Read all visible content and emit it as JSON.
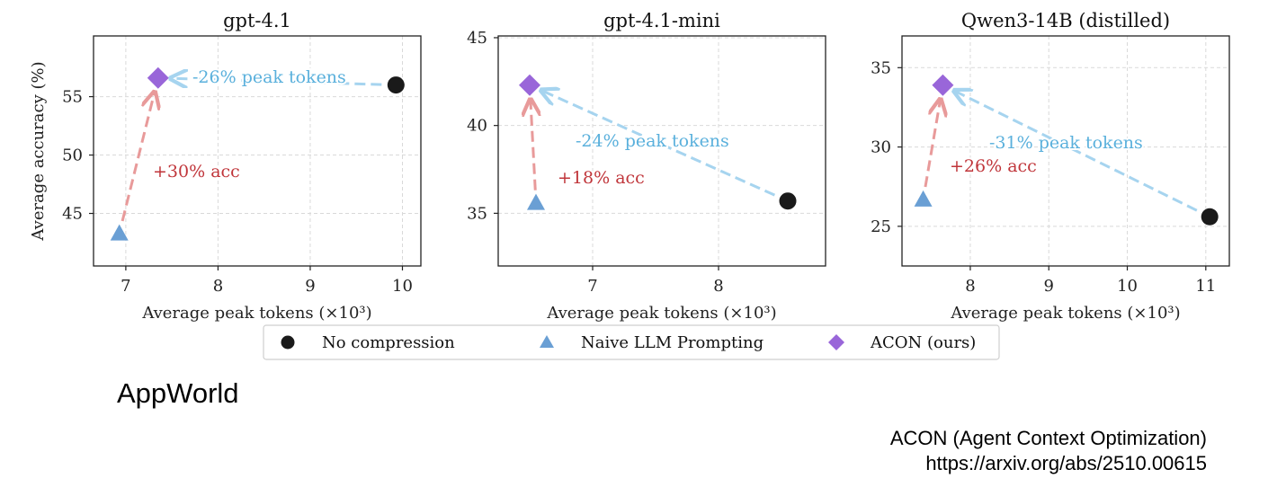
{
  "legend": [
    {
      "label": "No compression",
      "marker": "circle",
      "color": "#1a1a1a"
    },
    {
      "label": "Naive LLM Prompting",
      "marker": "triangle",
      "color": "#6a9fd4"
    },
    {
      "label": "ACON (ours)",
      "marker": "diamond",
      "color": "#9966d9"
    }
  ],
  "dataset_label": "AppWorld",
  "reference": {
    "title": "ACON (Agent Context Optimization)",
    "url": "https://arxiv.org/abs/2510.00615"
  },
  "colors": {
    "no_compression": "#1a1a1a",
    "naive": "#6a9fd4",
    "acon": "#9966d9",
    "token_arrow": "#a6d4ef",
    "token_text": "#5ab0dc",
    "acc_arrow": "#e89a9a",
    "acc_text": "#c0353a"
  },
  "chart_data": [
    {
      "type": "scatter",
      "title": "gpt-4.1",
      "xlabel": "Average peak tokens (×10³)",
      "ylabel": "Average accuracy (%)",
      "xlim": [
        6.65,
        10.2
      ],
      "ylim": [
        40.5,
        60.2
      ],
      "xticks": [
        7,
        8,
        9,
        10
      ],
      "yticks": [
        45,
        50,
        55
      ],
      "grid": true,
      "series": [
        {
          "name": "No compression",
          "x": [
            9.93
          ],
          "y": [
            56.0
          ]
        },
        {
          "name": "Naive LLM Prompting",
          "x": [
            6.93
          ],
          "y": [
            43.3
          ]
        },
        {
          "name": "ACON (ours)",
          "x": [
            7.35
          ],
          "y": [
            56.6
          ]
        }
      ],
      "annotations": [
        {
          "text": "-26% peak tokens",
          "kind": "tokens"
        },
        {
          "text": "+30% acc",
          "kind": "acc"
        }
      ]
    },
    {
      "type": "scatter",
      "title": "gpt-4.1-mini",
      "xlabel": "Average peak tokens (×10³)",
      "ylabel": "",
      "xlim": [
        6.25,
        8.85
      ],
      "ylim": [
        32.0,
        45.1
      ],
      "xticks": [
        7,
        8
      ],
      "yticks": [
        35,
        40,
        45
      ],
      "grid": true,
      "series": [
        {
          "name": "No compression",
          "x": [
            8.55
          ],
          "y": [
            35.7
          ]
        },
        {
          "name": "Naive LLM Prompting",
          "x": [
            6.55
          ],
          "y": [
            35.6
          ]
        },
        {
          "name": "ACON (ours)",
          "x": [
            6.5
          ],
          "y": [
            42.3
          ]
        }
      ],
      "annotations": [
        {
          "text": "-24% peak tokens",
          "kind": "tokens"
        },
        {
          "text": "+18% acc",
          "kind": "acc"
        }
      ]
    },
    {
      "type": "scatter",
      "title": "Qwen3-14B (distilled)",
      "xlabel": "Average peak tokens (×10³)",
      "ylabel": "",
      "xlim": [
        7.13,
        11.3
      ],
      "ylim": [
        22.5,
        37.0
      ],
      "xticks": [
        8,
        9,
        10,
        11
      ],
      "yticks": [
        25,
        30,
        35
      ],
      "grid": true,
      "series": [
        {
          "name": "No compression",
          "x": [
            11.05
          ],
          "y": [
            25.6
          ]
        },
        {
          "name": "Naive LLM Prompting",
          "x": [
            7.4
          ],
          "y": [
            26.7
          ]
        },
        {
          "name": "ACON (ours)",
          "x": [
            7.65
          ],
          "y": [
            33.9
          ]
        }
      ],
      "annotations": [
        {
          "text": "-31% peak tokens",
          "kind": "tokens"
        },
        {
          "text": "+26% acc",
          "kind": "acc"
        }
      ]
    }
  ]
}
